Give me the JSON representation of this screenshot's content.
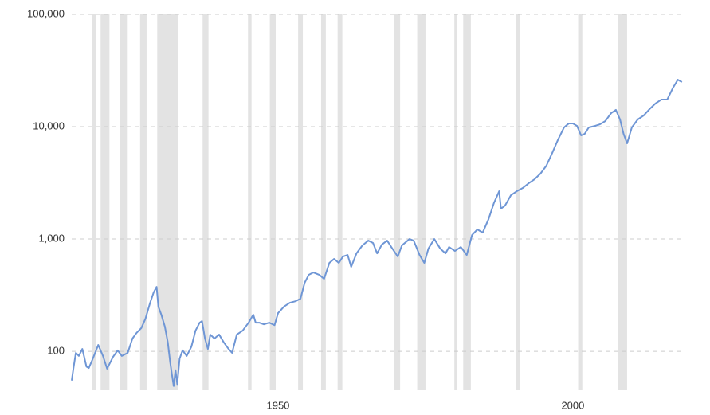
{
  "chart_data": {
    "type": "line",
    "log_y": true,
    "grid": true,
    "xlim": [
      1915,
      2018.8
    ],
    "ylim": [
      45,
      100000
    ],
    "yticks": [
      {
        "value": 100,
        "label": "100"
      },
      {
        "value": 1000,
        "label": "1,000"
      },
      {
        "value": 10000,
        "label": "10,000"
      },
      {
        "value": 100000,
        "label": "100,000"
      }
    ],
    "xticks": [
      1950,
      2000
    ],
    "recession_color": "#e3e3e3",
    "recessions": [
      [
        1918.4,
        1919.1
      ],
      [
        1919.9,
        1921.4
      ],
      [
        1923.2,
        1924.5
      ],
      [
        1926.6,
        1927.7
      ],
      [
        1929.5,
        1933.0
      ],
      [
        1937.2,
        1938.2
      ],
      [
        1944.9,
        1945.5
      ],
      [
        1948.6,
        1949.6
      ],
      [
        1953.4,
        1954.2
      ],
      [
        1957.3,
        1958.1
      ],
      [
        1960.1,
        1960.9
      ],
      [
        1969.7,
        1970.7
      ],
      [
        1973.6,
        1975.0
      ],
      [
        1979.9,
        1980.4
      ],
      [
        1981.4,
        1982.7
      ],
      [
        1990.3,
        1991.0
      ],
      [
        2000.9,
        2001.6
      ],
      [
        2007.7,
        2009.2
      ]
    ],
    "series": [
      {
        "color": "#6f96d5",
        "x": [
          1915.0,
          1915.3,
          1915.7,
          1916.2,
          1916.8,
          1917.5,
          1917.9,
          1918.5,
          1919.5,
          1920.3,
          1921.0,
          1922.0,
          1922.8,
          1923.5,
          1924.5,
          1925.3,
          1926.0,
          1926.8,
          1927.5,
          1928.3,
          1928.9,
          1929.4,
          1929.7,
          1930.2,
          1930.8,
          1931.3,
          1931.7,
          1932.0,
          1932.3,
          1932.6,
          1932.9,
          1933.3,
          1933.8,
          1934.5,
          1935.3,
          1936.0,
          1936.7,
          1937.1,
          1937.6,
          1938.1,
          1938.5,
          1939.2,
          1940.0,
          1940.8,
          1941.6,
          1942.2,
          1943.0,
          1944.0,
          1945.0,
          1945.8,
          1946.2,
          1946.8,
          1947.6,
          1948.5,
          1949.4,
          1950.0,
          1951.0,
          1952.0,
          1953.0,
          1953.8,
          1954.5,
          1955.2,
          1956.0,
          1957.0,
          1957.8,
          1958.7,
          1959.5,
          1960.3,
          1961.0,
          1961.8,
          1962.4,
          1963.3,
          1964.3,
          1965.3,
          1966.1,
          1966.8,
          1967.6,
          1968.5,
          1969.2,
          1970.3,
          1971.0,
          1972.3,
          1973.0,
          1974.0,
          1974.8,
          1975.5,
          1976.5,
          1977.5,
          1978.4,
          1979.0,
          1980.0,
          1981.0,
          1982.0,
          1982.9,
          1983.8,
          1984.7,
          1985.7,
          1986.6,
          1987.5,
          1987.8,
          1988.5,
          1989.5,
          1990.5,
          1991.5,
          1992.5,
          1993.5,
          1994.5,
          1995.5,
          1996.5,
          1997.5,
          1998.5,
          1999.3,
          2000.0,
          2000.7,
          2001.4,
          2002.0,
          2002.7,
          2003.8,
          2004.6,
          2005.5,
          2006.5,
          2007.3,
          2008.0,
          2008.6,
          2009.2,
          2010.0,
          2011.0,
          2012.0,
          2013.0,
          2014.0,
          2015.0,
          2016.0,
          2017.0,
          2017.8,
          2018.5
        ],
        "values": [
          55,
          71,
          97,
          91,
          105,
          73,
          71,
          84,
          114,
          91,
          70,
          89,
          102,
          91,
          97,
          130,
          146,
          161,
          195,
          271,
          335,
          375,
          250,
          212,
          166,
          120,
          80,
          62,
          49,
          68,
          51,
          86,
          102,
          91,
          110,
          153,
          180,
          186,
          130,
          105,
          141,
          130,
          141,
          120,
          105,
          97,
          141,
          153,
          180,
          212,
          180,
          180,
          174,
          180,
          171,
          219,
          250,
          271,
          280,
          294,
          407,
          480,
          504,
          480,
          442,
          613,
          665,
          613,
          698,
          721,
          565,
          745,
          877,
          968,
          922,
          745,
          892,
          968,
          849,
          698,
          877,
          1000,
          968,
          721,
          613,
          822,
          1000,
          822,
          745,
          849,
          783,
          849,
          721,
          1085,
          1217,
          1140,
          1504,
          2084,
          2664,
          1862,
          1986,
          2455,
          2664,
          2844,
          3134,
          3404,
          3817,
          4487,
          5834,
          7702,
          9840,
          10670,
          10670,
          10170,
          8360,
          8630,
          9840,
          10170,
          10500,
          11220,
          13210,
          14100,
          11590,
          8630,
          7100,
          9840,
          11590,
          12560,
          14320,
          16060,
          17420,
          17420,
          22280,
          26180,
          24950
        ]
      }
    ]
  }
}
